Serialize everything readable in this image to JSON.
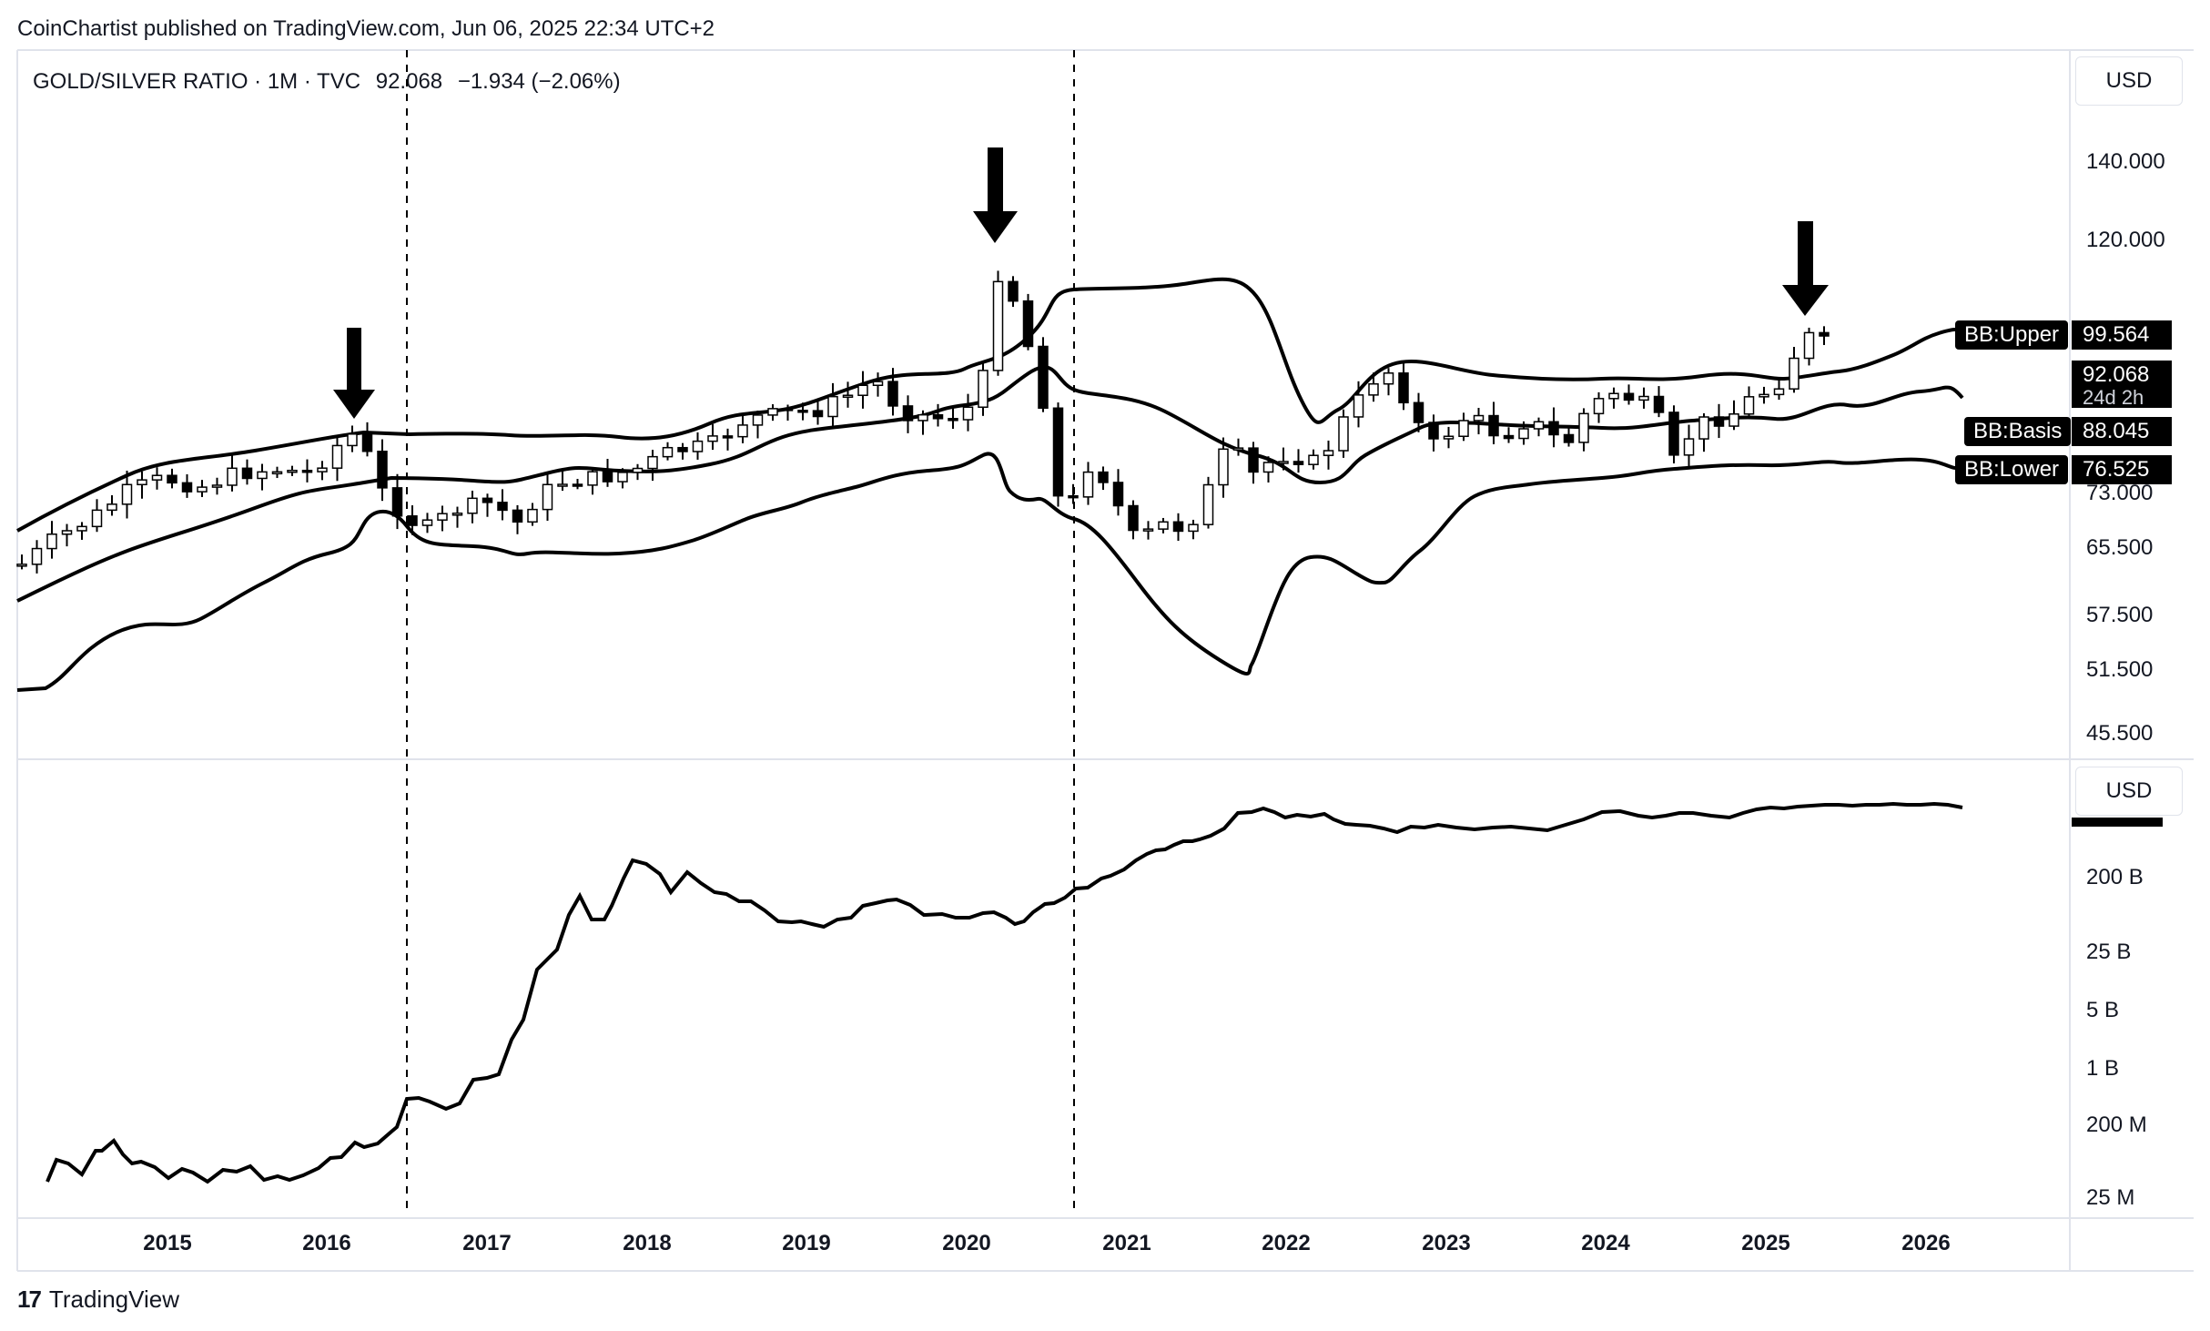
{
  "header": {
    "published": "CoinChartist published on TradingView.com, Jun 06, 2025 22:34 UTC+2"
  },
  "symbol": {
    "name": "GOLD/SILVER RATIO · 1M · TVC",
    "last": "92.068",
    "change": "−1.934 (−2.06%)"
  },
  "currency_top": "USD",
  "currency_bottom": "USD",
  "price_axis": [
    "140.000",
    "120.000",
    "73.000",
    "65.500",
    "57.500",
    "51.500",
    "45.500"
  ],
  "volume_axis": [
    "200 B",
    "25 B",
    "5 B",
    "1 B",
    "200 M",
    "25 M"
  ],
  "x_axis": [
    "2015",
    "2016",
    "2017",
    "2018",
    "2019",
    "2020",
    "2021",
    "2022",
    "2023",
    "2024",
    "2025",
    "2026"
  ],
  "tags": {
    "bb_upper_label": "BB:Upper",
    "bb_upper_value": "99.564",
    "price_value": "92.068",
    "countdown": "24d 2h",
    "bb_basis_label": "BB:Basis",
    "bb_basis_value": "88.045",
    "bb_lower_label": "BB:Lower",
    "bb_lower_value": "76.525"
  },
  "footer": {
    "brand": "TradingView",
    "logo": "17"
  },
  "chart_data": {
    "type": "candlestick",
    "title": "GOLD/SILVER RATIO · 1M · TVC",
    "x_range": [
      "2014-04",
      "2026-12"
    ],
    "y_scale": "log",
    "y_range": [
      44,
      160
    ],
    "candles_sample_close": [
      [
        "2014-04",
        65.5
      ],
      [
        "2015-01",
        73.0
      ],
      [
        "2016-02",
        83.5
      ],
      [
        "2016-06",
        66.0
      ],
      [
        "2017-06",
        72.5
      ],
      [
        "2018-09",
        82.0
      ],
      [
        "2019-06",
        88.0
      ],
      [
        "2020-03",
        112.0
      ],
      [
        "2020-09",
        72.0
      ],
      [
        "2021-02",
        66.0
      ],
      [
        "2021-06",
        70.0
      ],
      [
        "2022-06",
        87.0
      ],
      [
        "2023-01",
        80.0
      ],
      [
        "2024-04",
        75.0
      ],
      [
        "2025-04",
        100.5
      ],
      [
        "2025-06",
        92.068
      ]
    ],
    "bollinger": {
      "upper_last": 99.564,
      "basis_last": 88.045,
      "lower_last": 76.525
    },
    "annotations": [
      "down-arrow 2016-03",
      "down-arrow 2020-03",
      "down-arrow 2025-04",
      "vertical-dashed 2016-07",
      "vertical-dashed 2020-09"
    ],
    "lower_pane": {
      "type": "line",
      "y_scale": "log",
      "y_ticks": [
        "200 B",
        "25 B",
        "5 B",
        "1 B",
        "200 M",
        "25 M"
      ]
    }
  }
}
